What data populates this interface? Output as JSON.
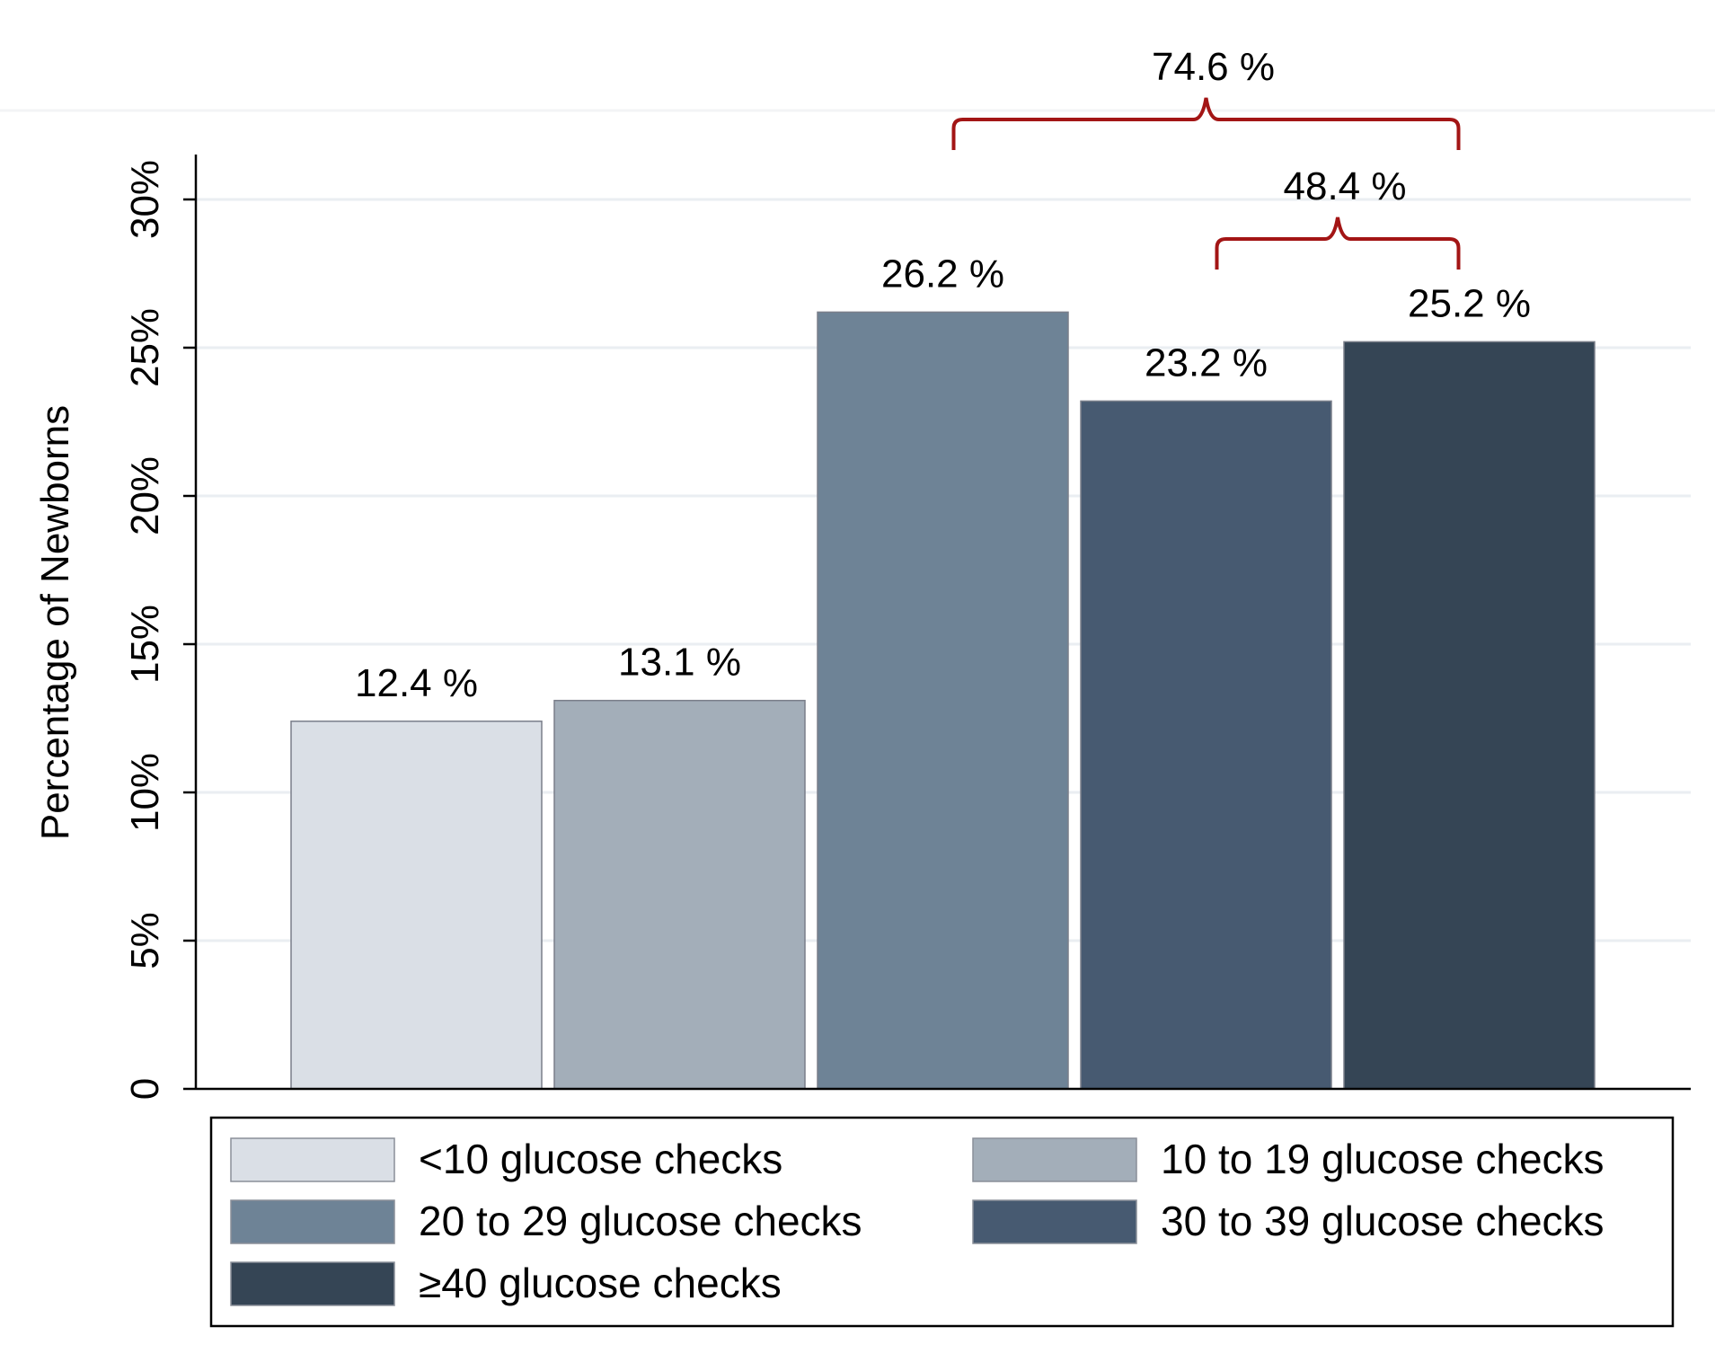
{
  "chart_data": {
    "type": "bar",
    "title": "",
    "xlabel": "",
    "ylabel": "Percentage of Newborns",
    "ylim": [
      0,
      30
    ],
    "yticks": [
      {
        "value": 0,
        "label": "0"
      },
      {
        "value": 5,
        "label": "5%"
      },
      {
        "value": 10,
        "label": "10%"
      },
      {
        "value": 15,
        "label": "15%"
      },
      {
        "value": 20,
        "label": "20%"
      },
      {
        "value": 25,
        "label": "25%"
      },
      {
        "value": 30,
        "label": "30%"
      }
    ],
    "grid": true,
    "legend_position": "bottom",
    "series": [
      {
        "name": "<10 glucose checks",
        "value": 12.4,
        "label": "12.4 %",
        "color": "#dadfe6"
      },
      {
        "name": "10 to 19 glucose checks",
        "value": 13.1,
        "label": "13.1 %",
        "color": "#a3aeb9"
      },
      {
        "name": "20 to 29 glucose checks",
        "value": 26.2,
        "label": "26.2 %",
        "color": "#6e8396"
      },
      {
        "name": "30 to 39 glucose checks",
        "value": 23.2,
        "label": "23.2 %",
        "color": "#475a71"
      },
      {
        "name": "≥40 glucose checks",
        "value": 25.2,
        "label": "25.2 %",
        "color": "#354555"
      }
    ],
    "annotations": [
      {
        "label": "74.6 %",
        "from_series": 2,
        "to_series": 4
      },
      {
        "label": "48.4 %",
        "from_series": 3,
        "to_series": 4
      }
    ],
    "annotation_color": "#a31515"
  }
}
